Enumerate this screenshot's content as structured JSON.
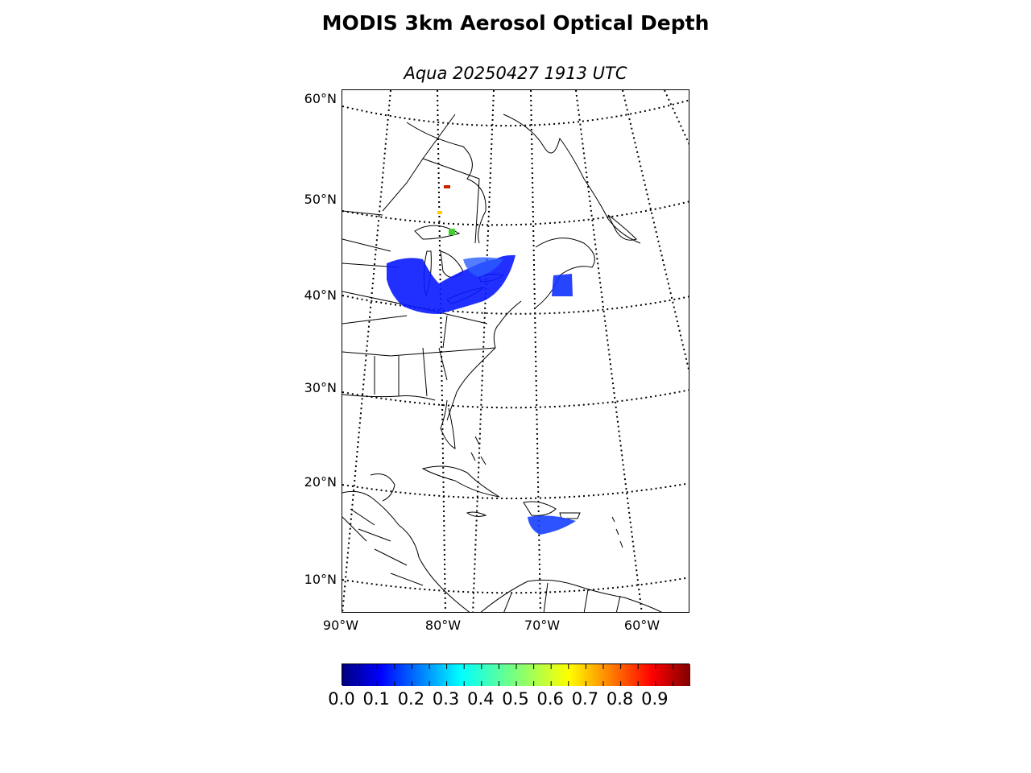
{
  "title": "MODIS 3km Aerosol Optical Depth",
  "subtitle": "Aqua 20250427 1913 UTC",
  "map": {
    "lat_labels": [
      "60°N",
      "50°N",
      "40°N",
      "30°N",
      "20°N",
      "10°N"
    ],
    "lon_labels": [
      "90°W",
      "80°W",
      "70°W",
      "60°W"
    ],
    "colors": {
      "coastline": "#000000",
      "graticule": "#000000",
      "background": "#ffffff"
    }
  },
  "colorbar": {
    "ticks": [
      "0.0",
      "0.1",
      "0.2",
      "0.3",
      "0.4",
      "0.5",
      "0.6",
      "0.7",
      "0.8",
      "0.9"
    ],
    "range": [
      0.0,
      1.0
    ],
    "colormap": "jet"
  }
}
